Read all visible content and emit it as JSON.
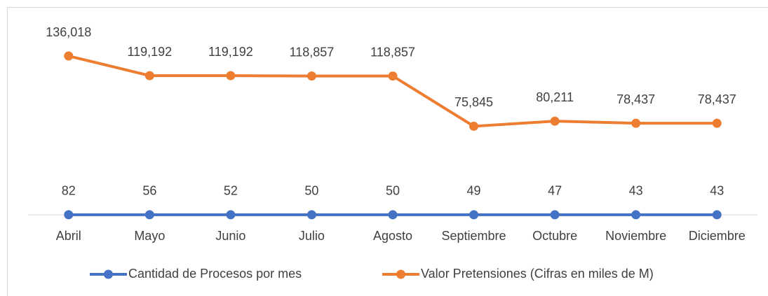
{
  "chart_data": {
    "type": "line",
    "categories": [
      "Abril",
      "Mayo",
      "Junio",
      "Julio",
      "Agosto",
      "Septiembre",
      "Octubre",
      "Noviembre",
      "Diciembre"
    ],
    "series": [
      {
        "name": "Cantidad de Procesos por mes",
        "color": "#4472c4",
        "values": [
          82,
          56,
          52,
          50,
          50,
          49,
          47,
          43,
          43
        ]
      },
      {
        "name": "Valor Pretensiones (Cifras en miles de M)",
        "color": "#ed7d31",
        "values": [
          136018,
          119192,
          119192,
          118857,
          118857,
          75845,
          80211,
          78437,
          78437
        ],
        "value_labels": [
          "136,018",
          "119,192",
          "119,192",
          "118,857",
          "118,857",
          "75,845",
          "80,211",
          "78,437",
          "78,437"
        ]
      }
    ],
    "ylim": [
      0,
      160000
    ],
    "legend": "bottom"
  }
}
